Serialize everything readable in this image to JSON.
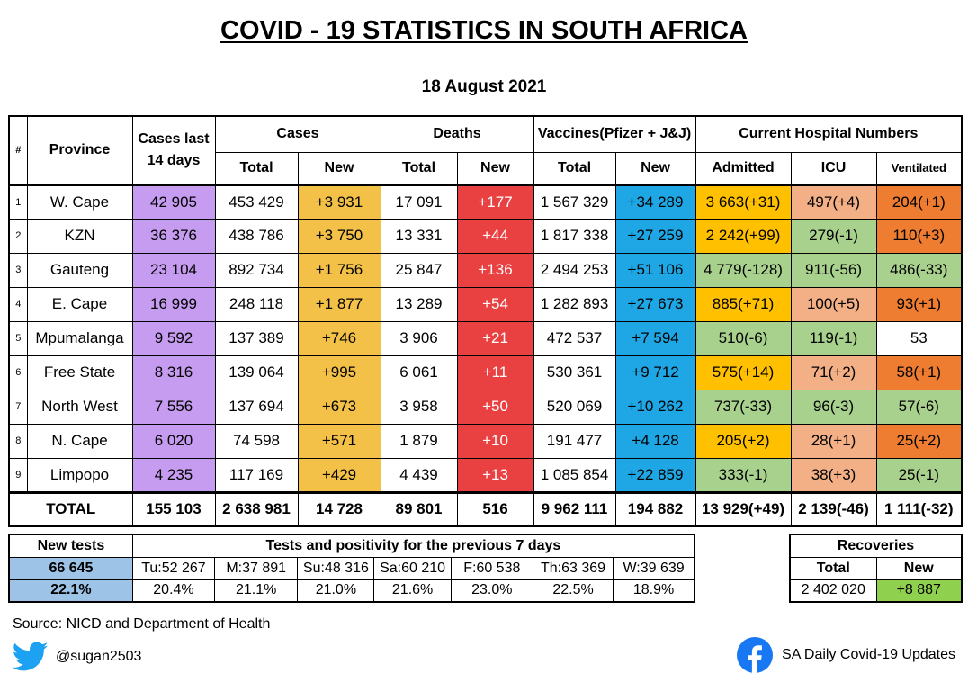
{
  "title": "COVID - 19 STATISTICS IN SOUTH AFRICA",
  "date": "18 August 2021",
  "headers": {
    "num": "#",
    "province": "Province",
    "cases14_line1": "Cases last",
    "cases14_line2": "14 days",
    "cases": "Cases",
    "deaths": "Deaths",
    "vaccines": "Vaccines(Pfizer + J&J)",
    "hospital": "Current Hospital Numbers",
    "total": "Total",
    "new": "New",
    "admitted": "Admitted",
    "icu": "ICU",
    "ventilated": "Ventilated"
  },
  "rows": [
    {
      "n": "1",
      "province": "W. Cape",
      "last14": "42 905",
      "cases_total": "453 429",
      "cases_new": "+3 931",
      "deaths_total": "17 091",
      "deaths_new": "+177",
      "vacc_total": "1 567 329",
      "vacc_new": "+34 289",
      "admitted": "3 663(+31)",
      "icu": "497(+4)",
      "vent": "204(+1)"
    },
    {
      "n": "2",
      "province": "KZN",
      "last14": "36 376",
      "cases_total": "438 786",
      "cases_new": "+3 750",
      "deaths_total": "13 331",
      "deaths_new": "+44",
      "vacc_total": "1 817 338",
      "vacc_new": "+27 259",
      "admitted": "2 242(+99)",
      "icu": "279(-1)",
      "vent": "110(+3)"
    },
    {
      "n": "3",
      "province": "Gauteng",
      "last14": "23 104",
      "cases_total": "892 734",
      "cases_new": "+1 756",
      "deaths_total": "25 847",
      "deaths_new": "+136",
      "vacc_total": "2 494 253",
      "vacc_new": "+51 106",
      "admitted": "4 779(-128)",
      "icu": "911(-56)",
      "vent": "486(-33)"
    },
    {
      "n": "4",
      "province": "E. Cape",
      "last14": "16 999",
      "cases_total": "248 118",
      "cases_new": "+1 877",
      "deaths_total": "13 289",
      "deaths_new": "+54",
      "vacc_total": "1 282 893",
      "vacc_new": "+27 673",
      "admitted": "885(+71)",
      "icu": "100(+5)",
      "vent": "93(+1)"
    },
    {
      "n": "5",
      "province": "Mpumalanga",
      "last14": "9 592",
      "cases_total": "137 389",
      "cases_new": "+746",
      "deaths_total": "3 906",
      "deaths_new": "+21",
      "vacc_total": "472 537",
      "vacc_new": "+7 594",
      "admitted": "510(-6)",
      "icu": "119(-1)",
      "vent": "53"
    },
    {
      "n": "6",
      "province": "Free State",
      "last14": "8 316",
      "cases_total": "139 064",
      "cases_new": "+995",
      "deaths_total": "6 061",
      "deaths_new": "+11",
      "vacc_total": "530 361",
      "vacc_new": "+9 712",
      "admitted": "575(+14)",
      "icu": "71(+2)",
      "vent": "58(+1)"
    },
    {
      "n": "7",
      "province": "North West",
      "last14": "7 556",
      "cases_total": "137 694",
      "cases_new": "+673",
      "deaths_total": "3 958",
      "deaths_new": "+50",
      "vacc_total": "520 069",
      "vacc_new": "+10 262",
      "admitted": "737(-33)",
      "icu": "96(-3)",
      "vent": "57(-6)"
    },
    {
      "n": "8",
      "province": "N. Cape",
      "last14": "6 020",
      "cases_total": "74 598",
      "cases_new": "+571",
      "deaths_total": "1 879",
      "deaths_new": "+10",
      "vacc_total": "191 477",
      "vacc_new": "+4 128",
      "admitted": "205(+2)",
      "icu": "28(+1)",
      "vent": "25(+2)"
    },
    {
      "n": "9",
      "province": "Limpopo",
      "last14": "4 235",
      "cases_total": "117 169",
      "cases_new": "+429",
      "deaths_total": "4 439",
      "deaths_new": "+13",
      "vacc_total": "1 085 854",
      "vacc_new": "+22 859",
      "admitted": "333(-1)",
      "icu": "38(+3)",
      "vent": "25(-1)"
    }
  ],
  "total": {
    "label": "TOTAL",
    "last14": "155 103",
    "cases_total": "2 638 981",
    "cases_new": "14 728",
    "deaths_total": "89 801",
    "deaths_new": "516",
    "vacc_total": "9 962 111",
    "vacc_new": "194 882",
    "admitted": "13 929(+49)",
    "icu": "2 139(-46)",
    "vent": "1 111(-32)"
  },
  "tests": {
    "new_tests_label": "New tests",
    "positivity_header": "Tests and positivity for the previous 7 days",
    "new_tests_value": "66 645",
    "positivity_today": "22.1%",
    "days": [
      {
        "label": "Tu:52 267",
        "pct": "20.4%"
      },
      {
        "label": "M:37 891",
        "pct": "21.1%"
      },
      {
        "label": "Su:48 316",
        "pct": "21.0%"
      },
      {
        "label": "Sa:60 210",
        "pct": "21.6%"
      },
      {
        "label": "F:60 538",
        "pct": "23.0%"
      },
      {
        "label": "Th:63 369",
        "pct": "22.5%"
      },
      {
        "label": "W:39 639",
        "pct": "18.9%"
      }
    ]
  },
  "recoveries": {
    "title": "Recoveries",
    "total_label": "Total",
    "new_label": "New",
    "total": "2 402 020",
    "new": "+8 887"
  },
  "footer": {
    "source": "Source: NICD and Department of Health",
    "twitter": "@sugan2503",
    "facebook": "SA Daily Covid-19 Updates"
  },
  "colors": {
    "last14": "#c69cf0",
    "cases_new": "#f4c148",
    "deaths_new": "#e94141",
    "vacc_new": "#1ea7e4",
    "twitter": "#1da1f2",
    "facebook": "#1877f2"
  }
}
